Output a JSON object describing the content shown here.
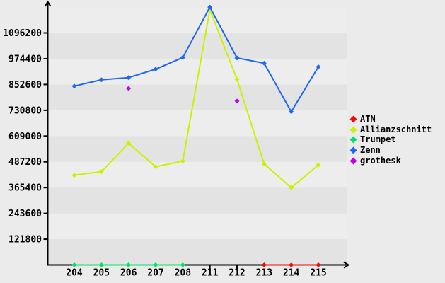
{
  "window": {
    "background": "#ebebeb"
  },
  "colors": {
    "plot_band_dark": "#e3e3e3",
    "plot_band_light": "#ededed",
    "axis": "#000000",
    "label_text": "#000000"
  },
  "chart_data": {
    "type": "line",
    "title": "",
    "categories": [
      "204",
      "205",
      "206",
      "207",
      "208",
      "211",
      "212",
      "213",
      "214",
      "215"
    ],
    "y_ticks": [
      "121800",
      "243600",
      "365400",
      "487200",
      "609000",
      "730800",
      "852600",
      "974400",
      "1096200"
    ],
    "y_tick_interval": 121800,
    "ylim": [
      0,
      1222000
    ],
    "x_ticks_below_axis": [
      "211",
      "212"
    ],
    "grid": "striped-horizontal-bands",
    "legend_position": "right",
    "series": [
      {
        "name": "ATN",
        "color": "#ee0c0c",
        "line": true,
        "x": [
          "213",
          "214",
          "215"
        ],
        "values": [
          0,
          0,
          0
        ]
      },
      {
        "name": "Allianzschnitt",
        "color": "#ccf100",
        "line": true,
        "x": [
          "204",
          "205",
          "206",
          "207",
          "208",
          "211",
          "212",
          "213",
          "214",
          "215"
        ],
        "values": [
          424000,
          441000,
          575000,
          464000,
          491000,
          1206000,
          877000,
          477000,
          365400,
          472000
        ]
      },
      {
        "name": "Trumpet",
        "color": "#00e465",
        "line": true,
        "x": [
          "204",
          "205",
          "206",
          "207",
          "208"
        ],
        "values": [
          0,
          0,
          0,
          0,
          0
        ]
      },
      {
        "name": "Zenn",
        "color": "#2068f0",
        "line": true,
        "x": [
          "204",
          "205",
          "206",
          "207",
          "208",
          "211",
          "212",
          "213",
          "214",
          "215"
        ],
        "values": [
          845000,
          875000,
          885000,
          925000,
          980000,
          1218000,
          978000,
          953000,
          724000,
          936000
        ]
      },
      {
        "name": "grothesk",
        "color": "#c400e8",
        "line": false,
        "x": [
          "206",
          "212"
        ],
        "values": [
          834000,
          774000
        ]
      }
    ]
  }
}
